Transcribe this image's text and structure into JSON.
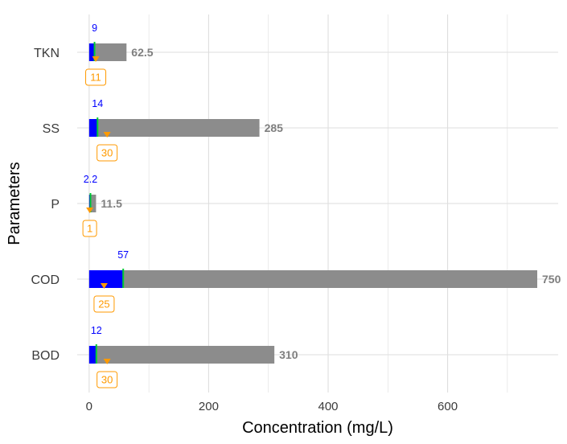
{
  "chart_data": {
    "type": "bar",
    "orientation": "horizontal",
    "xlabel": "Concentration (mg/L)",
    "ylabel": "Parameters",
    "xlim": [
      -20,
      785
    ],
    "x_ticks": [
      0,
      200,
      400,
      600
    ],
    "categories": [
      "TKN",
      "SS",
      "P",
      "COD",
      "BOD"
    ],
    "series": [
      {
        "key": "influent",
        "values": [
          62.5,
          285,
          11.5,
          750,
          310
        ]
      },
      {
        "key": "effluent",
        "values": [
          9,
          14,
          2.2,
          57,
          12
        ]
      },
      {
        "key": "standard",
        "values": [
          11,
          30,
          1,
          25,
          30
        ]
      }
    ],
    "value_labels": [
      "62.5",
      "285",
      "11.5",
      "750",
      "310"
    ],
    "effluent_labels": [
      "9",
      "14",
      "2.2",
      "57",
      "12"
    ],
    "standard_labels": [
      "11",
      "30",
      "1",
      "25",
      "30"
    ],
    "colors": {
      "influent": "#8c8c8c",
      "effluent": "#0000ff",
      "effluent_marker": "#00cc33",
      "standard": "#ff9a00",
      "grid": "#dedede"
    },
    "grid": true,
    "legend": "none"
  }
}
